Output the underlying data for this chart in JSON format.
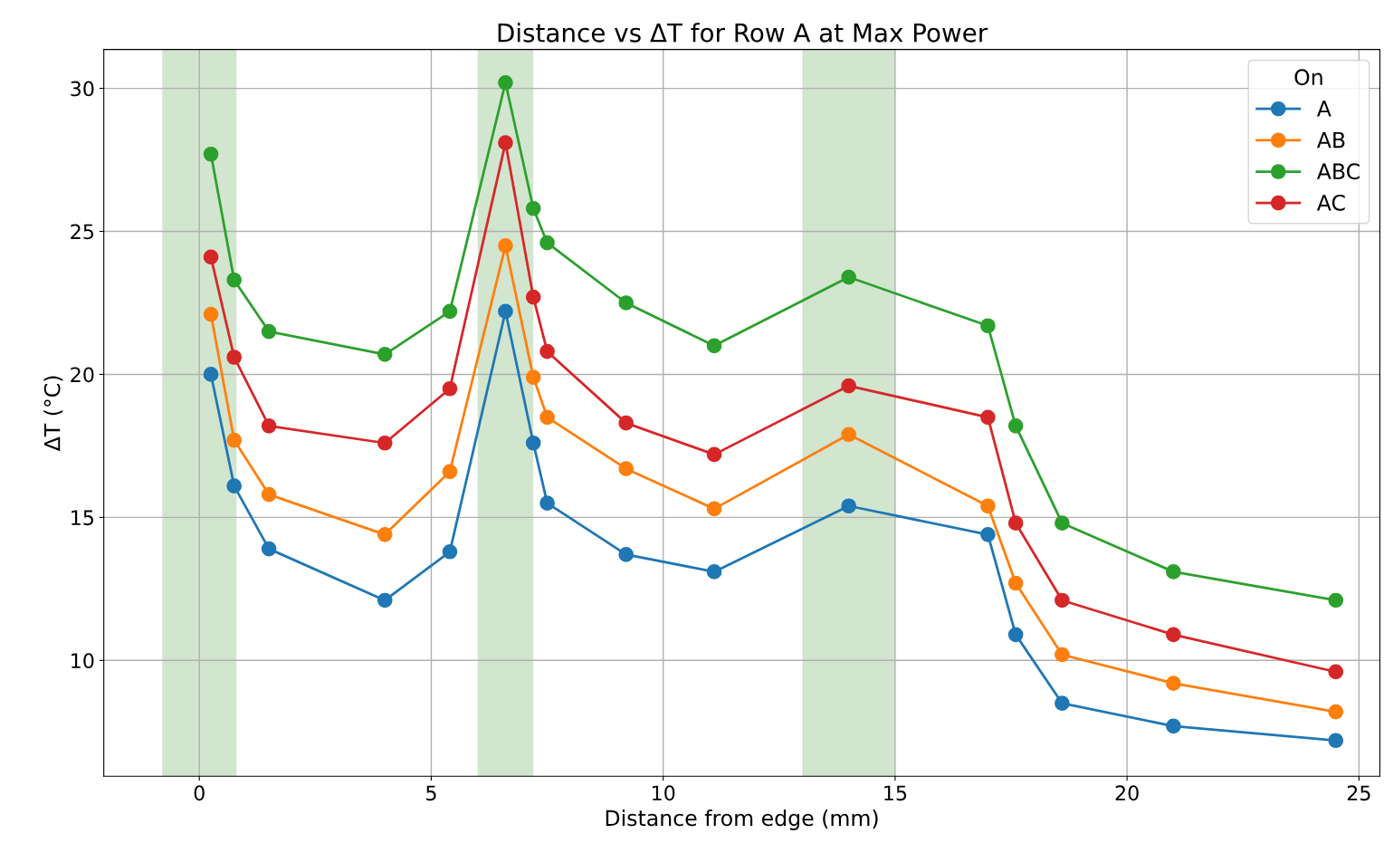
{
  "chart_data": {
    "type": "line",
    "title": "Distance vs ΔT for Row A at Max Power",
    "xlabel": "Distance from edge (mm)",
    "ylabel": "ΔT (°C)",
    "legend_title": "On",
    "x": [
      0.25,
      0.75,
      1.5,
      4.0,
      5.4,
      6.6,
      7.2,
      7.5,
      9.2,
      11.1,
      14.0,
      17.0,
      17.6,
      18.6,
      21.0,
      24.5
    ],
    "series": [
      {
        "name": "A",
        "color": "#1f77b4",
        "values": [
          20.0,
          16.1,
          13.9,
          12.1,
          13.8,
          22.2,
          17.6,
          15.5,
          13.7,
          13.1,
          15.4,
          14.4,
          10.9,
          8.5,
          7.7,
          7.2
        ]
      },
      {
        "name": "AB",
        "color": "#ff7f0e",
        "values": [
          22.1,
          17.7,
          15.8,
          14.4,
          16.6,
          24.5,
          19.9,
          18.5,
          16.7,
          15.3,
          17.9,
          15.4,
          12.7,
          10.2,
          9.2,
          8.2
        ]
      },
      {
        "name": "ABC",
        "color": "#2ca02c",
        "values": [
          27.7,
          23.3,
          21.5,
          20.7,
          22.2,
          30.2,
          25.8,
          24.6,
          22.5,
          21.0,
          23.4,
          21.7,
          18.2,
          14.8,
          13.1,
          12.1
        ]
      },
      {
        "name": "AC",
        "color": "#d62728",
        "values": [
          24.1,
          20.6,
          18.2,
          17.6,
          19.5,
          28.1,
          22.7,
          20.8,
          18.3,
          17.2,
          19.6,
          18.5,
          14.8,
          12.1,
          10.9,
          9.6
        ]
      }
    ],
    "bands": [
      {
        "axis": "x",
        "from": -0.8,
        "to": 0.8,
        "color": "#d2e5cf"
      },
      {
        "axis": "x",
        "from": 6.0,
        "to": 7.2,
        "color": "#d2e5cf"
      },
      {
        "axis": "x",
        "from": 13.0,
        "to": 15.0,
        "color": "#d2e5cf"
      }
    ],
    "xlim": [
      -2.06,
      25.45
    ],
    "ylim": [
      5.95,
      31.36
    ],
    "xticks": [
      0,
      5,
      10,
      15,
      20,
      25
    ],
    "yticks": [
      10,
      15,
      20,
      25,
      30
    ],
    "grid": true,
    "legend": "top right",
    "marker": "circle",
    "line_style": "solid"
  }
}
